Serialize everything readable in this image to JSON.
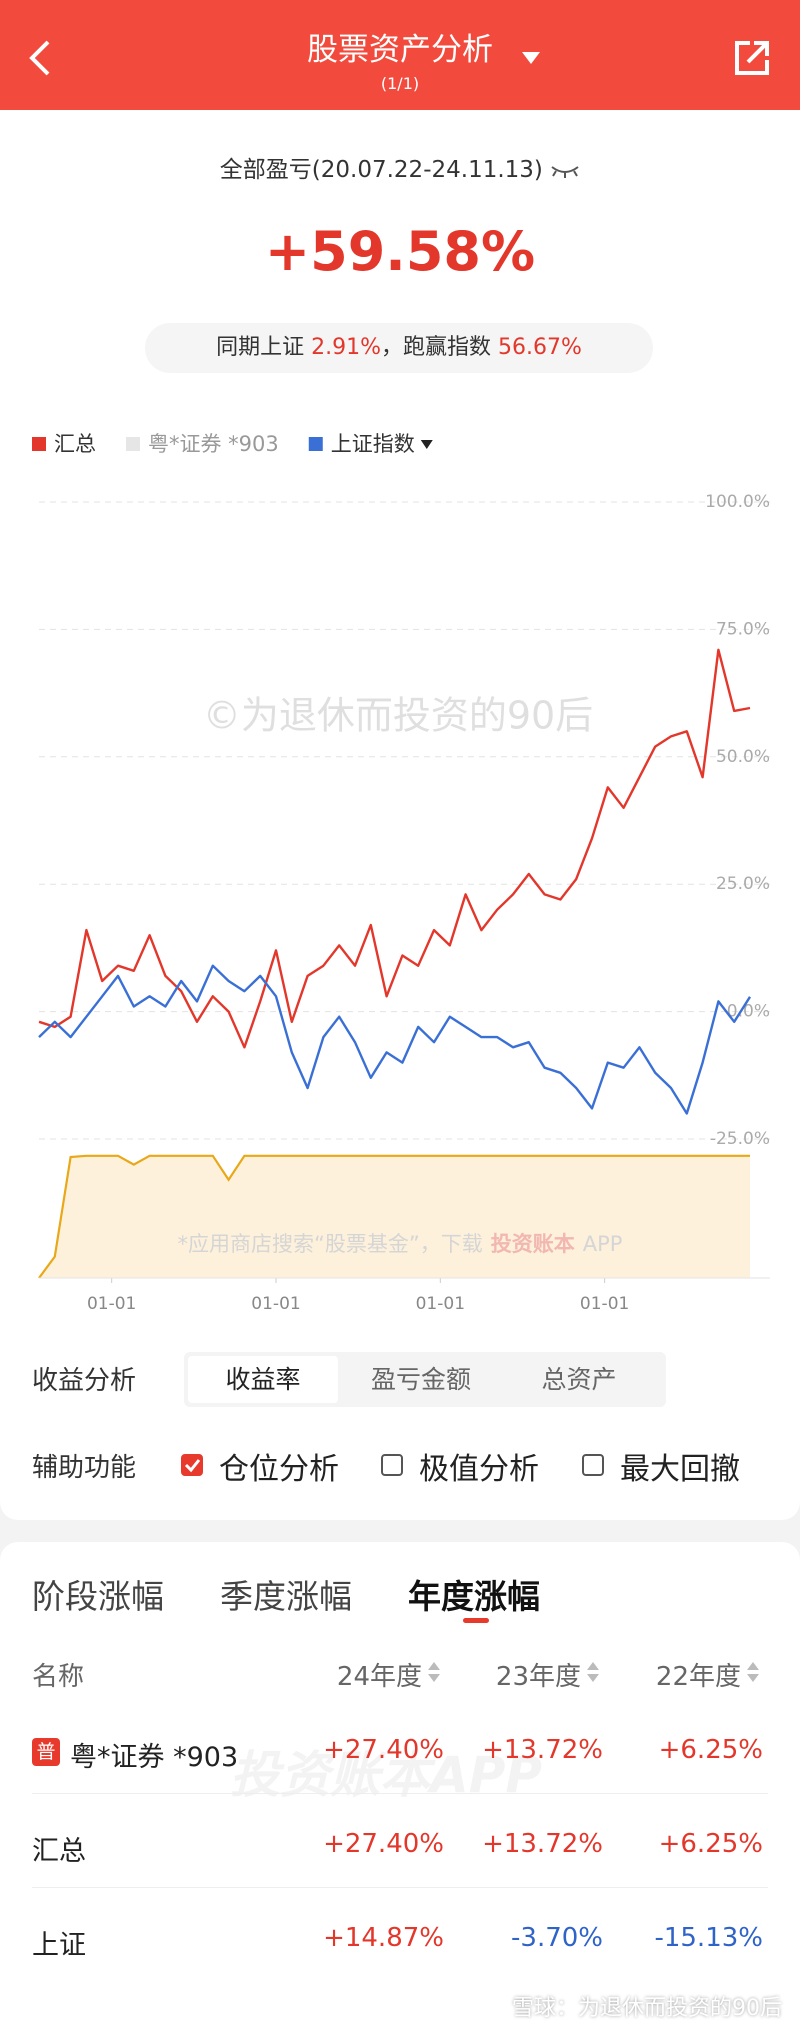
{
  "header": {
    "title": "股票资产分析",
    "subtitle": "(1/1)"
  },
  "summary": {
    "label": "全部盈亏(20.07.22-24.11.13)",
    "value": "+59.58%",
    "compare_prefix": "同期上证",
    "index_return": "2.91%",
    "compare_mid": "，跑赢指数",
    "excess_return": "56.67%"
  },
  "chart_data": [
    {
      "type": "line",
      "watermark": "©为退休而投资的90后",
      "series": [
        {
          "name": "汇总",
          "color": "#e3372b",
          "values": [
            -2,
            -3,
            -1,
            16,
            6,
            9,
            8,
            15,
            7,
            4,
            -2,
            3,
            0,
            -7,
            2,
            12,
            -2,
            7,
            9,
            13,
            9,
            17,
            3,
            11,
            9,
            16,
            13,
            23,
            16,
            20,
            23,
            27,
            23,
            22,
            26,
            34,
            44,
            40,
            46,
            52,
            54,
            55,
            46,
            71,
            59,
            59.58
          ]
        },
        {
          "name": "粤*证券 *903",
          "color": "#e6e6e6",
          "hidden": true
        },
        {
          "name": "上证指数",
          "color": "#3a70d6",
          "values": [
            -5,
            -2,
            -5,
            -1,
            3,
            7,
            1,
            3,
            1,
            6,
            2,
            9,
            6,
            4,
            7,
            3,
            -8,
            -15,
            -5,
            -1,
            -6,
            -13,
            -8,
            -10,
            -3,
            -6,
            -1,
            -3,
            -5,
            -5,
            -7,
            -6,
            -11,
            -12,
            -15,
            -19,
            -10,
            -11,
            -7,
            -12,
            -15,
            -20,
            -10,
            2,
            -2,
            2.91
          ]
        }
      ],
      "xlim": [
        0,
        45
      ],
      "xticks": [
        {
          "value": 4.6,
          "label": "01-01"
        },
        {
          "value": 15,
          "label": "01-01"
        },
        {
          "value": 25.4,
          "label": "01-01"
        },
        {
          "value": 35.8,
          "label": "01-01"
        }
      ],
      "ylim": [
        -25,
        100
      ],
      "yticks": [
        {
          "value": -25,
          "label": "-25.0%"
        },
        {
          "value": 0,
          "label": "0.0%"
        },
        {
          "value": 25,
          "label": "25.0%"
        },
        {
          "value": 50,
          "label": "50.0%"
        },
        {
          "value": 75,
          "label": "75.0%"
        },
        {
          "value": 100,
          "label": "100.0%"
        }
      ],
      "grid": true
    },
    {
      "type": "area",
      "watermark": "*应用商店搜索“股票基金”，下载",
      "watermark_brand": "投资账本",
      "watermark_app": "APP",
      "color": "#e8a817",
      "values": [
        0,
        17,
        96,
        97,
        97,
        97,
        90,
        97,
        97,
        97,
        97,
        97,
        78,
        97,
        97,
        97,
        97,
        97,
        97,
        97,
        97,
        97,
        97,
        97,
        97,
        97,
        97,
        97,
        97,
        97,
        97,
        97,
        97,
        97,
        97,
        97,
        97,
        97,
        97,
        97,
        97,
        97,
        97,
        97,
        97,
        97
      ],
      "xlim": [
        0,
        45
      ],
      "ylim": [
        0,
        100
      ]
    }
  ],
  "controls": {
    "analysis_label": "收益分析",
    "analysis_options": [
      "收益率",
      "盈亏金额",
      "总资产"
    ],
    "analysis_selected": 0,
    "aux_label": "辅助功能",
    "aux_options": [
      {
        "label": "仓位分析",
        "checked": true
      },
      {
        "label": "极值分析",
        "checked": false
      },
      {
        "label": "最大回撤",
        "checked": false
      }
    ]
  },
  "tabs": {
    "items": [
      "阶段涨幅",
      "季度涨幅",
      "年度涨幅"
    ],
    "selected": 2
  },
  "table": {
    "header": [
      "名称",
      "24年度",
      "23年度",
      "22年度"
    ],
    "badge": "普",
    "watermark": "投资账本APP",
    "rows": [
      [
        "粤*证券 *903",
        "+27.40%",
        "+13.72%",
        "+6.25%"
      ],
      [
        "汇总",
        "+27.40%",
        "+13.72%",
        "+6.25%"
      ],
      [
        "上证",
        "+14.87%",
        "-3.70%",
        "-15.13%"
      ]
    ]
  },
  "footer": "雪球：为退休而投资的90后"
}
